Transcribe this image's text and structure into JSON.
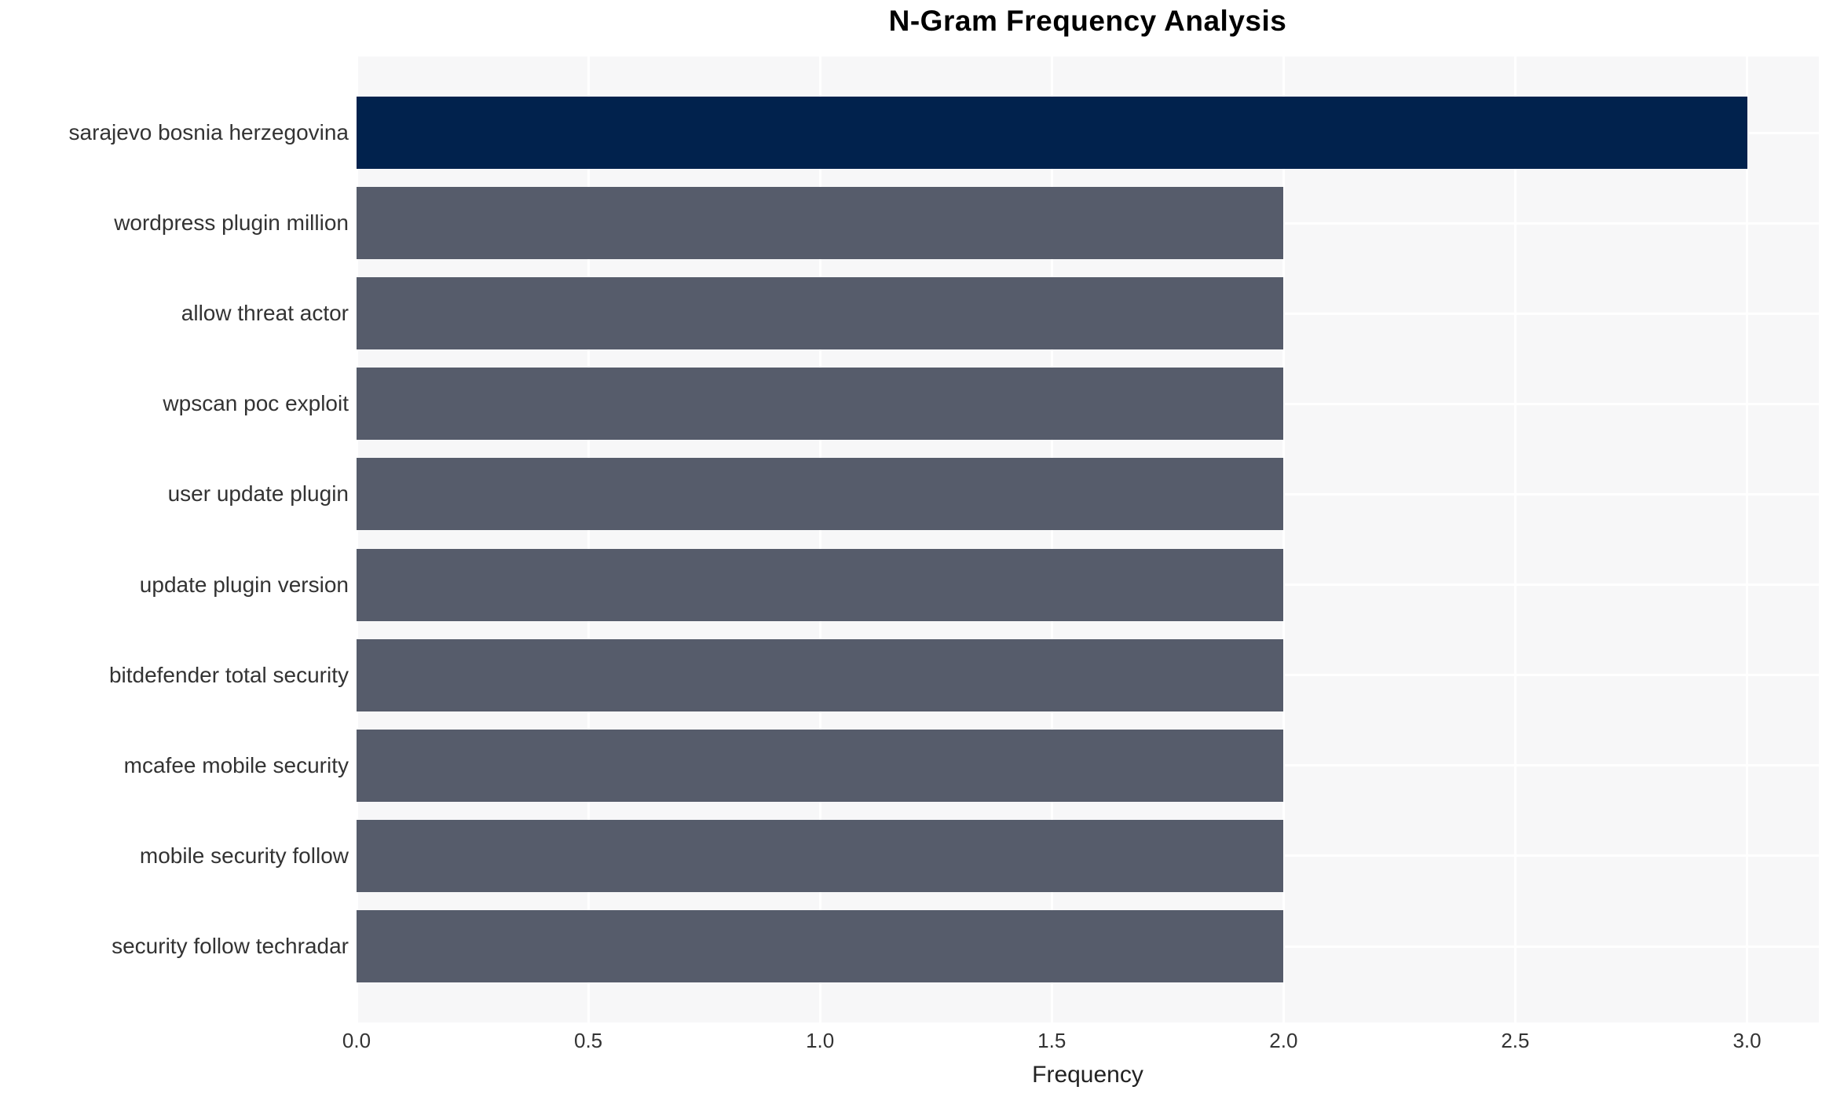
{
  "chart_data": {
    "type": "bar",
    "orientation": "horizontal",
    "title": "N-Gram Frequency Analysis",
    "xlabel": "Frequency",
    "ylabel": "",
    "categories": [
      "sarajevo bosnia herzegovina",
      "wordpress plugin million",
      "allow threat actor",
      "wpscan poc exploit",
      "user update plugin",
      "update plugin version",
      "bitdefender total security",
      "mcafee mobile security",
      "mobile security follow",
      "security follow techradar"
    ],
    "values": [
      3,
      2,
      2,
      2,
      2,
      2,
      2,
      2,
      2,
      2
    ],
    "xticks": [
      "0.0",
      "0.5",
      "1.0",
      "1.5",
      "2.0",
      "2.5",
      "3.0"
    ],
    "xtick_values": [
      0,
      0.5,
      1,
      1.5,
      2,
      2.5,
      3
    ],
    "xlim": [
      0,
      3.155
    ],
    "grid": "on",
    "legend": "none",
    "colors": {
      "highlight_bar": "#01224d",
      "default_bar": "#565c6b",
      "plot_background": "#f7f7f8",
      "gridline": "#ffffff",
      "tick_text": "#333333",
      "title_text": "#000000"
    },
    "bar_colors": [
      "#01224d",
      "#565c6b",
      "#565c6b",
      "#565c6b",
      "#565c6b",
      "#565c6b",
      "#565c6b",
      "#565c6b",
      "#565c6b",
      "#565c6b"
    ]
  }
}
